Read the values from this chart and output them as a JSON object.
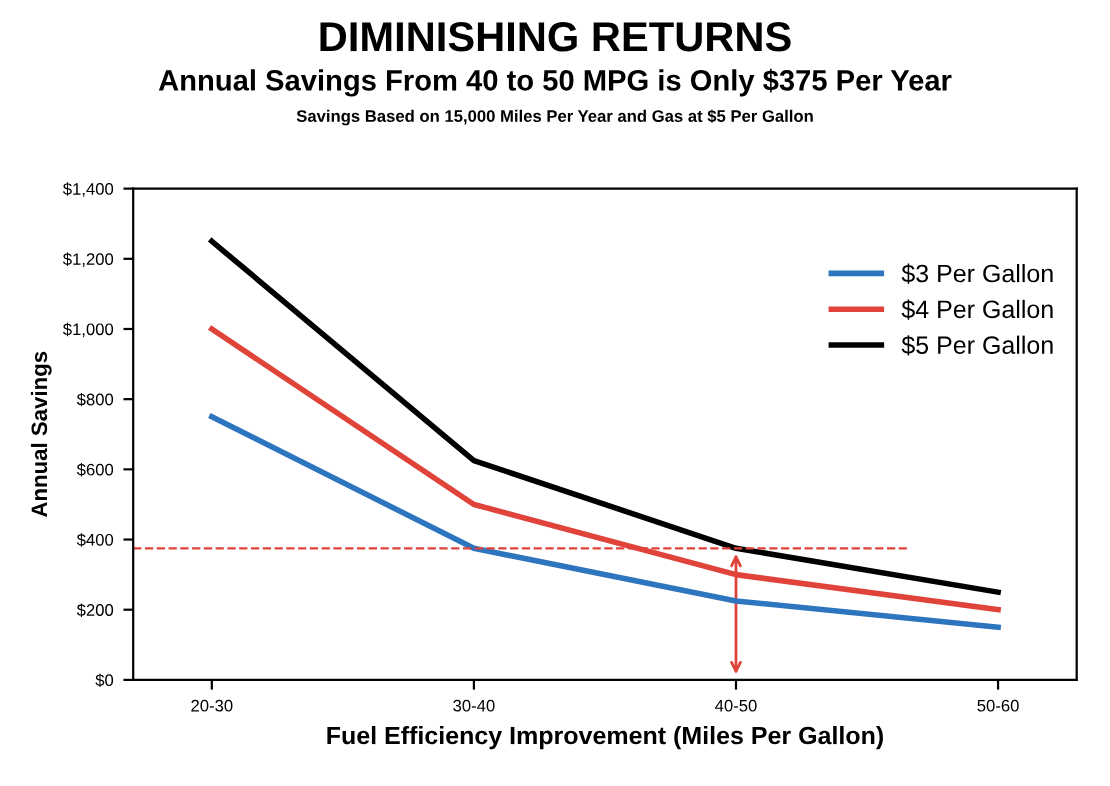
{
  "chart_data": {
    "type": "line",
    "title": "DIMINISHING RETURNS",
    "subtitle": "Annual Savings From 40 to 50 MPG is Only $375 Per Year",
    "annotations": [
      "Savings Based on 15,000 Miles Per Year and Gas at $5 Per Gallon"
    ],
    "xlabel": "Fuel Efficiency Improvement (Miles Per Gallon)",
    "ylabel": "Annual Savings",
    "categories": [
      "20-30",
      "30-40",
      "40-50",
      "50-60"
    ],
    "series": [
      {
        "name": "$3 Per Gallon",
        "color": "#2e75c0",
        "values": [
          750,
          375,
          225,
          150
        ]
      },
      {
        "name": "$4 Per Gallon",
        "color": "#e0433a",
        "values": [
          1000,
          500,
          300,
          200
        ]
      },
      {
        "name": "$5 Per Gallon",
        "color": "#000000",
        "values": [
          1250,
          625,
          375,
          250
        ]
      }
    ],
    "ylim": [
      0,
      1400
    ],
    "yticks": [
      {
        "value": 0,
        "label": "$0"
      },
      {
        "value": 200,
        "label": "$200"
      },
      {
        "value": 400,
        "label": "$400"
      },
      {
        "value": 600,
        "label": "$600"
      },
      {
        "value": 800,
        "label": "$800"
      },
      {
        "value": 1000,
        "label": "$1,000"
      },
      {
        "value": 1200,
        "label": "$1,200"
      },
      {
        "value": 1400,
        "label": "$1,400"
      }
    ],
    "ref_lines": [
      {
        "axis": "y",
        "value": 375,
        "color": "#e0433a",
        "line_style": "dashed"
      }
    ],
    "grid": false,
    "legend": "right",
    "marker": "none",
    "line_style": "solid"
  }
}
